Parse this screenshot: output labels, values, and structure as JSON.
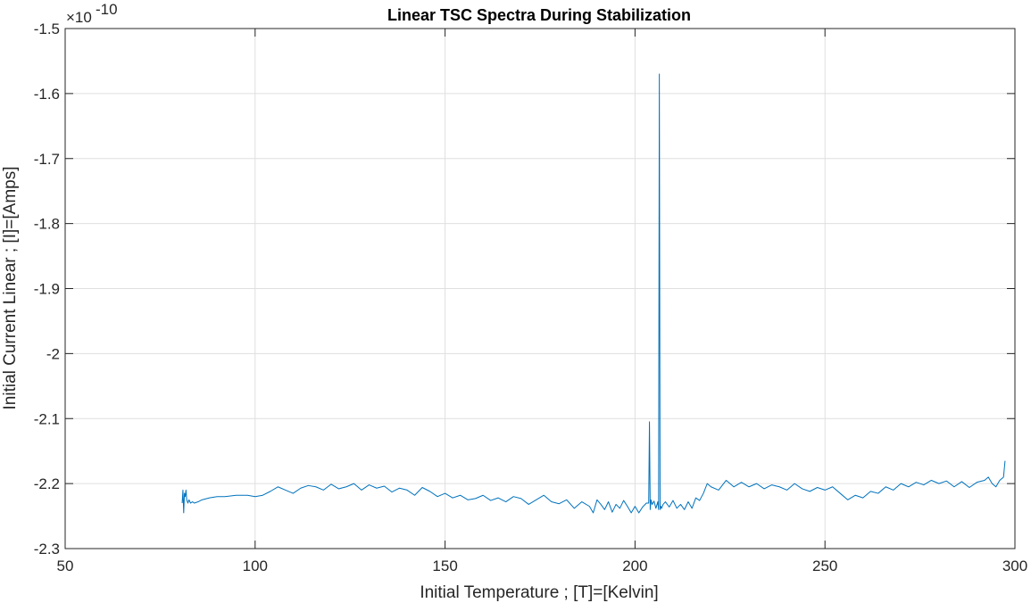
{
  "chart_data": {
    "type": "line",
    "title": "Linear TSC Spectra During Stabilization",
    "xlabel": "Initial Temperature ; [T]=[Kelvin]",
    "ylabel": "Initial Current Linear ; [I]=[Amps]",
    "y_exponent_base": "×10",
    "y_exponent_power": "-10",
    "xlim": [
      50,
      300
    ],
    "ylim": [
      -2.3,
      -1.5
    ],
    "x_ticks": [
      50,
      100,
      150,
      200,
      250,
      300
    ],
    "x_tick_labels": [
      "50",
      "100",
      "150",
      "200",
      "250",
      "300"
    ],
    "y_ticks": [
      -2.3,
      -2.2,
      -2.1,
      -2.0,
      -1.9,
      -1.8,
      -1.7,
      -1.6,
      -1.5
    ],
    "y_tick_labels": [
      "-2.3",
      "-2.2",
      "-2.1",
      "-2",
      "-1.9",
      "-1.8",
      "-1.7",
      "-1.6",
      "-1.5"
    ],
    "grid": true,
    "series": [
      {
        "color": "#0072BD",
        "x": [
          80.8,
          81.0,
          81.2,
          81.4,
          81.6,
          81.8,
          82.0,
          82.3,
          82.6,
          83.0,
          83.5,
          84,
          85,
          86,
          88,
          90,
          92,
          95,
          98,
          100,
          102,
          104,
          106,
          108,
          110,
          112,
          114,
          116,
          118,
          120,
          122,
          124,
          126,
          128,
          130,
          132,
          134,
          136,
          138,
          140,
          142,
          144,
          146,
          148,
          150,
          152,
          154,
          156,
          158,
          160,
          162,
          164,
          166,
          168,
          170,
          172,
          174,
          176,
          178,
          180,
          182,
          184,
          186,
          188,
          189,
          190,
          191,
          192,
          193,
          194,
          195,
          196,
          197,
          198,
          199,
          200,
          201,
          202,
          203,
          203.6,
          203.8,
          204.0,
          204.2,
          204.5,
          205,
          205.5,
          206,
          206.2,
          206.4,
          206.6,
          206.8,
          207.0,
          207.4,
          208,
          209,
          210,
          211,
          212,
          213,
          214,
          215,
          216,
          217,
          218,
          219,
          220,
          222,
          224,
          226,
          228,
          230,
          232,
          234,
          236,
          238,
          240,
          242,
          244,
          246,
          248,
          250,
          252,
          254,
          256,
          258,
          260,
          262,
          264,
          266,
          268,
          270,
          272,
          274,
          276,
          278,
          280,
          282,
          284,
          286,
          288,
          290,
          292,
          293,
          294,
          295,
          296,
          297,
          297.4
        ],
        "y": [
          -2.23,
          -2.21,
          -2.245,
          -2.215,
          -2.22,
          -2.21,
          -2.225,
          -2.23,
          -2.225,
          -2.23,
          -2.228,
          -2.23,
          -2.228,
          -2.225,
          -2.222,
          -2.22,
          -2.22,
          -2.218,
          -2.218,
          -2.22,
          -2.218,
          -2.212,
          -2.205,
          -2.21,
          -2.215,
          -2.207,
          -2.203,
          -2.205,
          -2.21,
          -2.201,
          -2.208,
          -2.205,
          -2.2,
          -2.21,
          -2.202,
          -2.207,
          -2.204,
          -2.213,
          -2.207,
          -2.21,
          -2.218,
          -2.206,
          -2.212,
          -2.22,
          -2.215,
          -2.222,
          -2.218,
          -2.225,
          -2.223,
          -2.218,
          -2.226,
          -2.222,
          -2.228,
          -2.22,
          -2.223,
          -2.232,
          -2.225,
          -2.218,
          -2.228,
          -2.231,
          -2.225,
          -2.238,
          -2.228,
          -2.235,
          -2.245,
          -2.225,
          -2.232,
          -2.24,
          -2.228,
          -2.244,
          -2.232,
          -2.238,
          -2.226,
          -2.235,
          -2.245,
          -2.235,
          -2.245,
          -2.236,
          -2.23,
          -2.23,
          -2.105,
          -2.24,
          -2.225,
          -2.232,
          -2.227,
          -2.238,
          -2.228,
          -2.24,
          -1.57,
          -2.24,
          -2.235,
          -2.238,
          -2.232,
          -2.228,
          -2.236,
          -2.226,
          -2.238,
          -2.232,
          -2.24,
          -2.228,
          -2.238,
          -2.222,
          -2.226,
          -2.215,
          -2.2,
          -2.205,
          -2.21,
          -2.195,
          -2.205,
          -2.198,
          -2.205,
          -2.2,
          -2.208,
          -2.202,
          -2.205,
          -2.21,
          -2.2,
          -2.208,
          -2.212,
          -2.206,
          -2.21,
          -2.205,
          -2.215,
          -2.225,
          -2.218,
          -2.222,
          -2.212,
          -2.215,
          -2.205,
          -2.21,
          -2.2,
          -2.205,
          -2.198,
          -2.202,
          -2.195,
          -2.2,
          -2.196,
          -2.205,
          -2.197,
          -2.206,
          -2.198,
          -2.195,
          -2.19,
          -2.2,
          -2.205,
          -2.195,
          -2.19,
          -2.165
        ]
      }
    ]
  }
}
